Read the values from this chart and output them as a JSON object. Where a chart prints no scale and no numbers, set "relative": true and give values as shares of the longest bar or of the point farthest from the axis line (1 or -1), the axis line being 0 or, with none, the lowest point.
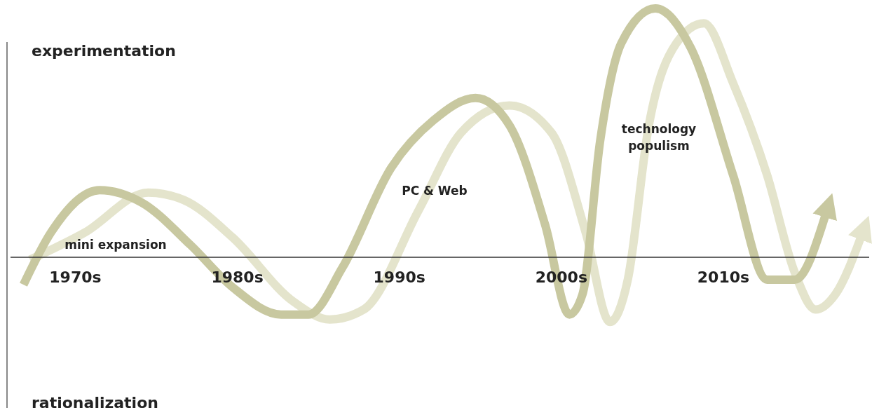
{
  "chart_data": {
    "type": "line",
    "relative": true,
    "line_style": "solid",
    "marker": "none",
    "xlim": [
      1966,
      2019
    ],
    "xticks": [
      {
        "value": 1970,
        "label": "1970s"
      },
      {
        "value": 1980,
        "label": "1980s"
      },
      {
        "value": 1990,
        "label": "1990s"
      },
      {
        "value": 2000,
        "label": "2000s"
      },
      {
        "value": 2010,
        "label": "2010s"
      }
    ],
    "series": [
      {
        "color": "#e4e4cc",
        "x": [
          1967.2,
          1970.6,
          1974.5,
          1976.7,
          1979.7,
          1983.5,
          1985.7,
          1987.8,
          1991.2,
          1993.8,
          1996.8,
          1999.4,
          2001.5,
          2003.0,
          2004.1,
          2005.4,
          2007.1,
          2008.8,
          2010.6,
          2012.7,
          2014.4,
          2015.7,
          2016.9,
          2018.6
        ],
        "values": [
          -0.01,
          0.1,
          0.26,
          0.23,
          0.08,
          -0.18,
          -0.25,
          -0.21,
          0.19,
          0.5,
          0.61,
          0.5,
          0.1,
          -0.26,
          -0.09,
          0.53,
          0.86,
          0.94,
          0.7,
          0.33,
          -0.06,
          -0.21,
          -0.15,
          0.1
        ]
      },
      {
        "color": "#c8c8a0",
        "x": [
          1966.8,
          1968.5,
          1971.5,
          1974.1,
          1977.1,
          1979.7,
          1982.7,
          1984.4,
          1986.5,
          1989.5,
          1992.1,
          1994.7,
          1996.8,
          1999.0,
          2000.5,
          2001.3,
          2002.4,
          2003.7,
          2005.8,
          2008.0,
          2010.6,
          2012.7,
          2014.4,
          2016.4
        ],
        "values": [
          -0.11,
          0.1,
          0.27,
          0.22,
          0.05,
          -0.12,
          -0.23,
          -0.23,
          -0.04,
          0.36,
          0.55,
          0.64,
          0.53,
          0.13,
          -0.23,
          -0.15,
          0.47,
          0.86,
          1.0,
          0.84,
          0.33,
          -0.09,
          -0.09,
          0.19
        ]
      }
    ],
    "annotations": [
      "experimentation",
      "rationalization",
      "mini expansion",
      "PC & Web",
      "technology\npopulism"
    ]
  }
}
